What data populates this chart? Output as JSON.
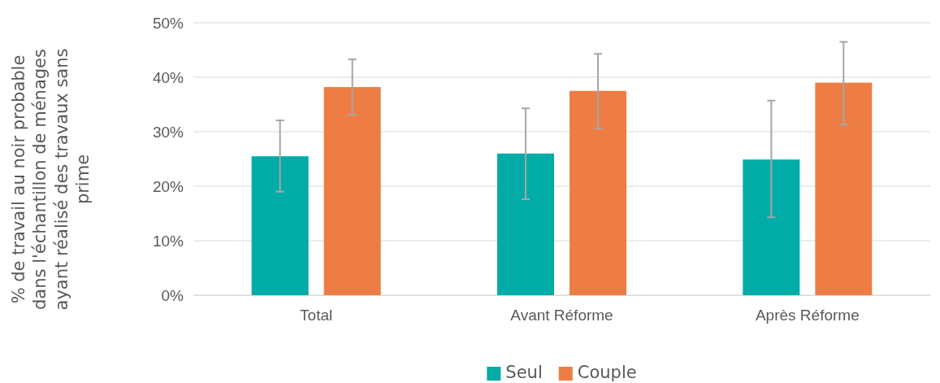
{
  "chart_data": {
    "type": "bar",
    "ylabel": "% de travail au noir probable dans l'échantillon de ménages ayant réalisé des travaux sans prime",
    "categories": [
      "Total",
      "Avant Réforme",
      "Après Réforme"
    ],
    "series": [
      {
        "name": "Seul",
        "color": "#00aca5",
        "values": [
          25.5,
          26.0,
          24.9
        ],
        "errors": [
          [
            19.0,
            32.1
          ],
          [
            17.6,
            34.3
          ],
          [
            14.3,
            35.7
          ]
        ]
      },
      {
        "name": "Couple",
        "color": "#ee7d45",
        "values": [
          38.2,
          37.5,
          39.0
        ],
        "errors": [
          [
            33.1,
            43.3
          ],
          [
            30.6,
            44.3
          ],
          [
            31.3,
            46.5
          ]
        ]
      }
    ],
    "ylim": [
      0,
      50
    ],
    "yticks": [
      {
        "value": 0,
        "label": "0%"
      },
      {
        "value": 10,
        "label": "10%"
      },
      {
        "value": 20,
        "label": "20%"
      },
      {
        "value": 30,
        "label": "30%"
      },
      {
        "value": 40,
        "label": "40%"
      },
      {
        "value": 50,
        "label": "50%"
      }
    ],
    "grid": "y",
    "legend": "bottom"
  }
}
